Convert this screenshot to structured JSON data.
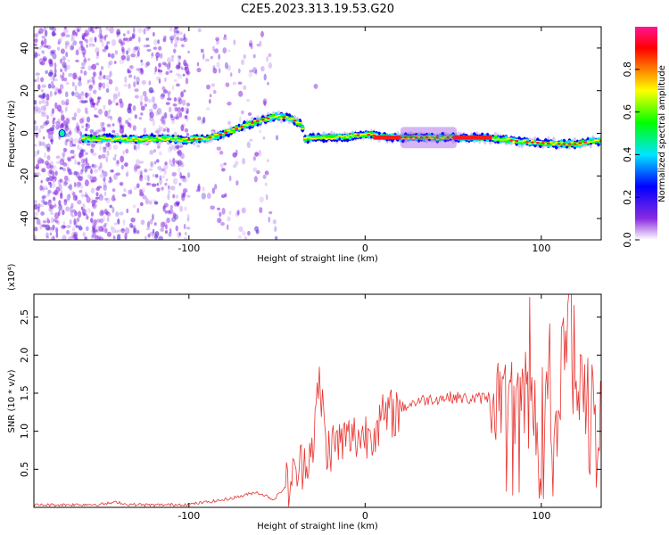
{
  "title": "C2E5.2023.313.19.53.G20",
  "chart_data": [
    {
      "type": "heatmap",
      "xlabel": "Height of straight line (km)",
      "ylabel": "Frequency (Hz)",
      "xlim": [
        -188,
        134
      ],
      "ylim": [
        -50,
        50
      ],
      "x_ticks": [
        -100,
        0,
        100
      ],
      "x_tick_labels": [
        "-100",
        "0",
        "100"
      ],
      "y_ticks": [
        -40,
        -20,
        0,
        20,
        40
      ],
      "y_tick_labels": [
        "-40",
        "-20",
        "0",
        "20",
        "40"
      ],
      "grid": false,
      "ridge": {
        "x": [
          -160,
          -150,
          -140,
          -130,
          -120,
          -110,
          -100,
          -90,
          -80,
          -70,
          -60,
          -50,
          -42,
          -36,
          -34,
          -30,
          -20,
          -10,
          0,
          10,
          20,
          30,
          40,
          50,
          60,
          70,
          80,
          90,
          100,
          110,
          120,
          130
        ],
        "frequency": [
          -2.5,
          -2.5,
          -2.5,
          -3,
          -2.5,
          -2.5,
          -3,
          -2.5,
          0,
          3,
          6,
          8,
          7,
          4,
          -3,
          -2,
          -2,
          -1.5,
          -0.5,
          -1.5,
          -2,
          -2,
          -2,
          -2,
          -2,
          -2,
          -3,
          -4,
          -4.5,
          -5,
          -5,
          -3.5
        ]
      },
      "colorbar": {
        "label": "Normalized spectral amplitude",
        "range": [
          0,
          1
        ],
        "ticks": [
          0.0,
          0.2,
          0.4,
          0.6,
          0.8
        ],
        "tick_labels": [
          "0.0",
          "0.2",
          "0.4",
          "0.6",
          "0.8"
        ],
        "colors": [
          "#ffffff",
          "#8a2be2",
          "#0000ff",
          "#00e5ff",
          "#00ff00",
          "#ffff00",
          "#ff6600",
          "#ff0000",
          "#ff1493"
        ]
      }
    },
    {
      "type": "line",
      "xlabel": "Height of straight line (km)",
      "ylabel": "SNR (10 * v/v)",
      "y_scale_label": "(x10⁴)",
      "xlim": [
        -188,
        134
      ],
      "ylim": [
        0,
        2.8
      ],
      "x_ticks": [
        -100,
        0,
        100
      ],
      "x_tick_labels": [
        "-100",
        "0",
        "100"
      ],
      "y_ticks": [
        0.5,
        1.0,
        1.5,
        2.0,
        2.5
      ],
      "y_tick_labels": [
        "0.5",
        "1.0",
        "1.5",
        "2.0",
        "2.5"
      ],
      "grid": false,
      "color": "#e8332f",
      "series": [
        {
          "x": [
            -188,
            -150,
            -140,
            -136,
            -120,
            -100,
            -90,
            -80,
            -70,
            -62,
            -56,
            -52,
            -46,
            -40,
            -30,
            -26,
            -24,
            -22,
            -20,
            -10,
            0,
            10,
            20,
            30,
            40,
            50,
            60,
            70,
            80,
            90,
            100,
            110,
            116,
            120,
            130,
            134
          ],
          "y": [
            0.03,
            0.04,
            0.07,
            0.04,
            0.03,
            0.04,
            0.07,
            0.1,
            0.15,
            0.2,
            0.15,
            0.1,
            0.25,
            0.4,
            0.8,
            1.6,
            1.3,
            0.7,
            0.8,
            0.9,
            0.95,
            1.15,
            1.3,
            1.4,
            1.43,
            1.45,
            1.42,
            1.45,
            1.42,
            1.4,
            1.3,
            1.2,
            2.8,
            1.3,
            1.2,
            1.3
          ]
        }
      ]
    }
  ]
}
